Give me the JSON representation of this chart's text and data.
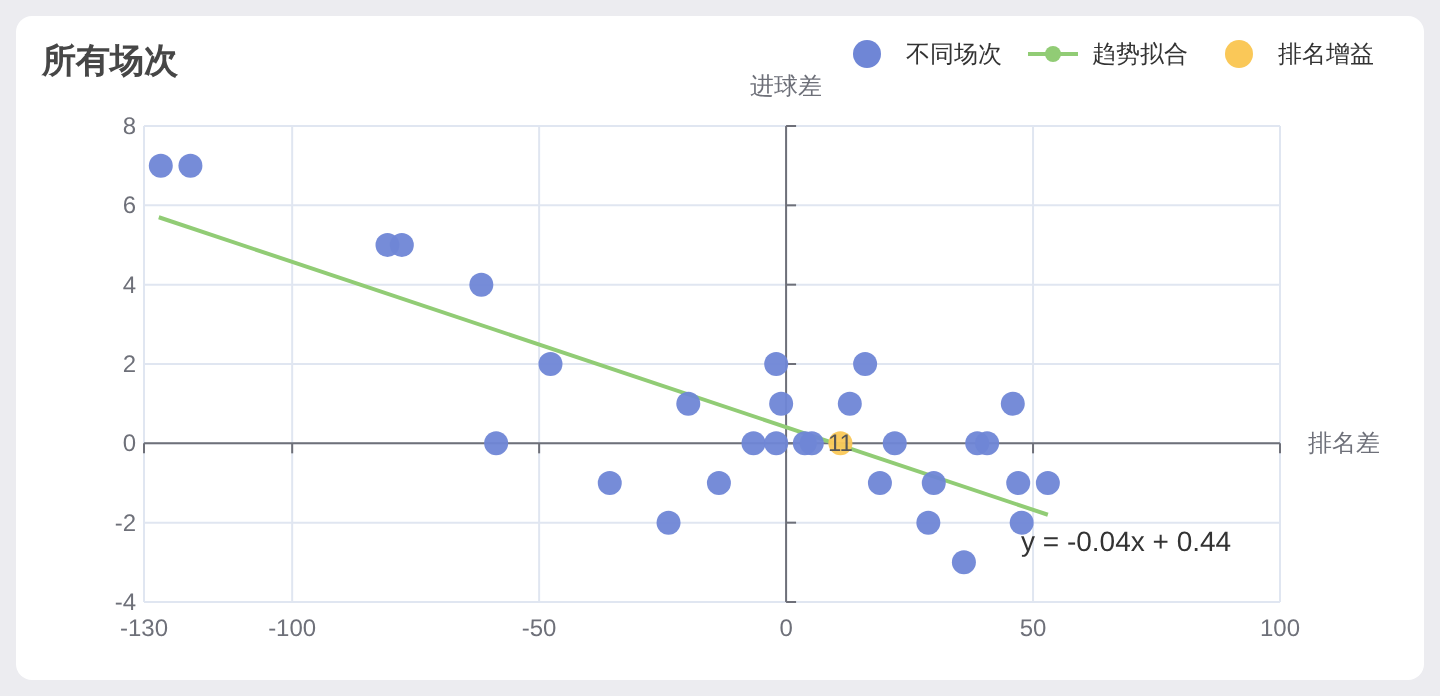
{
  "chart_data": {
    "type": "scatter",
    "title": "所有场次",
    "xlabel": "排名差",
    "ylabel": "进球差",
    "xlim": [
      -130,
      100
    ],
    "xticks": [
      -130,
      -100,
      -50,
      0,
      50,
      100
    ],
    "ylim": [
      -4,
      8
    ],
    "yticks": [
      -4,
      -2,
      0,
      2,
      4,
      6,
      8
    ],
    "grid": true,
    "legend": "top right",
    "series": [
      {
        "name": "不同场次",
        "color": "#6f86d6",
        "marker": "circle",
        "x": [
          -126.6,
          -120.6,
          -80.7,
          -77.8,
          -61.7,
          -47.7,
          -58.7,
          -35.7,
          -23.8,
          -19.8,
          -13.6,
          -6.6,
          -2,
          -2,
          -1,
          3.8,
          5.2,
          12.9,
          16,
          19,
          22,
          28.8,
          29.9,
          36,
          38.7,
          40.7,
          45.9,
          47,
          47.7,
          53
        ],
        "values": [
          7,
          7,
          5,
          5,
          4,
          2,
          0,
          -1,
          -2,
          1,
          -1,
          0,
          2,
          0,
          1,
          0,
          0,
          1,
          2,
          -1,
          0,
          -2,
          -1,
          -3,
          0,
          0,
          1,
          -1,
          -2,
          -1
        ]
      },
      {
        "name": "趋势拟合",
        "type": "line",
        "color": "#91cc75",
        "marker": "none",
        "x": [
          -127,
          53
        ],
        "values": [
          5.7,
          -1.8
        ]
      },
      {
        "name": "排名增益",
        "color": "#fac858",
        "marker": "circle",
        "x": [
          11
        ],
        "values": [
          0
        ]
      }
    ],
    "annotations": [
      {
        "text": "11",
        "x": 11,
        "y": 0
      },
      {
        "text": "y = -0.04x + 0.44",
        "x": 50,
        "y": -2.4
      }
    ]
  }
}
